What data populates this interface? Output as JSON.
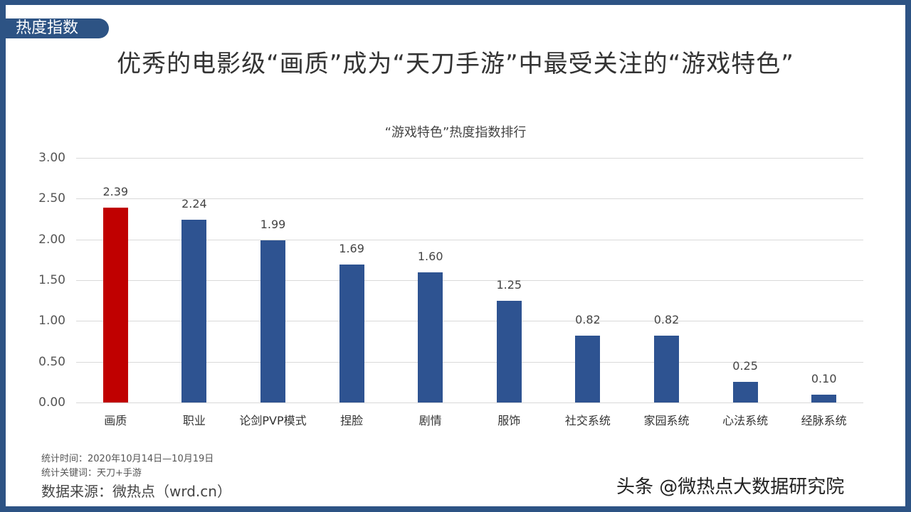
{
  "header": {
    "tag": "热度指数",
    "headline": "优秀的电影级“画质”成为“天刀手游”中最受关注的“游戏特色”"
  },
  "chart_data": {
    "type": "bar",
    "title": "“游戏特色”热度指数排行",
    "categories": [
      "画质",
      "职业",
      "论剑PVP模式",
      "捏脸",
      "剧情",
      "服饰",
      "社交系统",
      "家园系统",
      "心法系统",
      "经脉系统"
    ],
    "values": [
      2.39,
      2.24,
      1.99,
      1.69,
      1.6,
      1.25,
      0.82,
      0.82,
      0.25,
      0.1
    ],
    "value_labels": [
      "2.39",
      "2.24",
      "1.99",
      "1.69",
      "1.60",
      "1.25",
      "0.82",
      "0.82",
      "0.25",
      "0.10"
    ],
    "highlight_index": 0,
    "xlabel": "",
    "ylabel": "",
    "ylim": [
      0,
      3.0
    ],
    "yticks": [
      "0.00",
      "0.50",
      "1.00",
      "1.50",
      "2.00",
      "2.50",
      "3.00"
    ],
    "grid": true,
    "legend": "none",
    "colors": {
      "highlight": "#c00000",
      "default": "#2e5391"
    }
  },
  "footer": {
    "period": "统计时间：2020年10月14日—10月19日",
    "keywords": "统计关键词：天刀+手游",
    "source": "数据来源：微热点（wrd.cn）",
    "watermark": "头条 @微热点大数据研究院"
  }
}
